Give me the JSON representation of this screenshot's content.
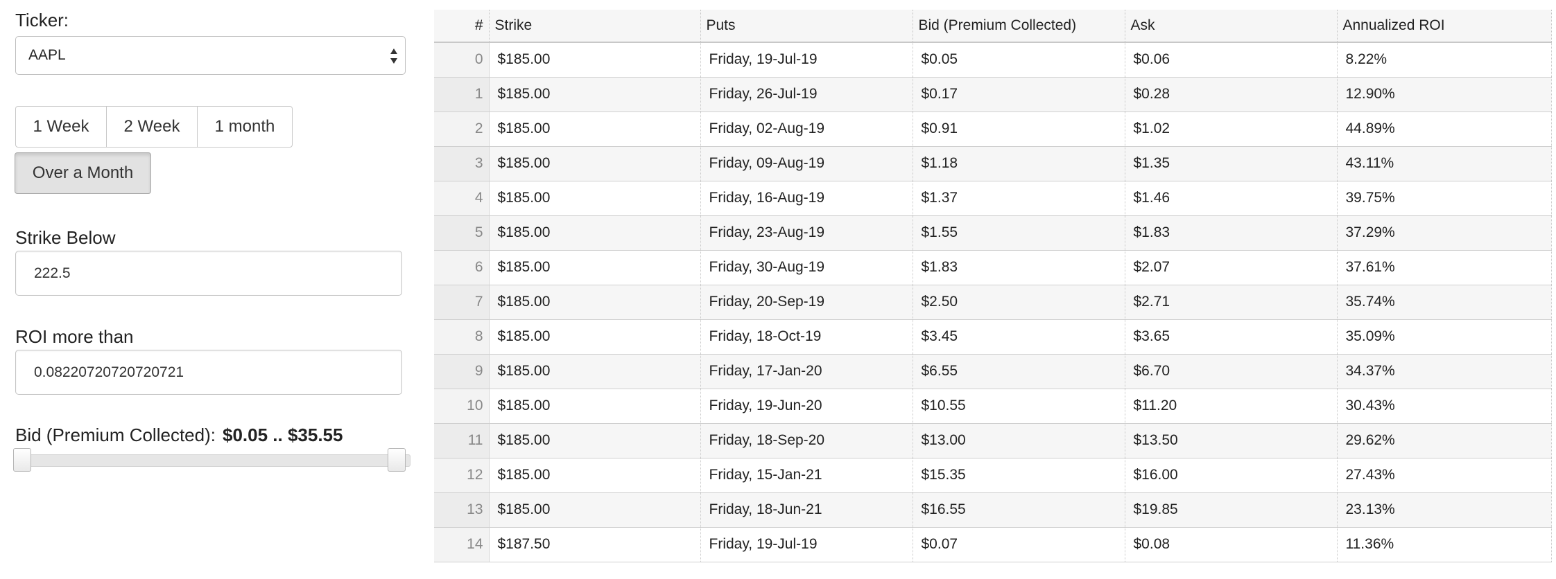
{
  "filters": {
    "ticker": {
      "label": "Ticker:",
      "value": "AAPL"
    },
    "period_buttons": [
      "1 Week",
      "2 Week",
      "1 month"
    ],
    "active_period": "Over a Month",
    "strike_below": {
      "label": "Strike Below",
      "value": "222.5"
    },
    "roi_more_than": {
      "label": "ROI more than",
      "value": "0.08220720720720721"
    },
    "bid_range": {
      "label": "Bid (Premium Collected):",
      "range_text": "$0.05 .. $35.55",
      "min": 0.05,
      "max": 35.55,
      "low": 0.05,
      "high": 35.55
    }
  },
  "table": {
    "headers": [
      "#",
      "Strike",
      "Puts",
      "Bid (Premium Collected)",
      "Ask",
      "Annualized ROI"
    ],
    "rows": [
      [
        "0",
        "$185.00",
        "Friday, 19-Jul-19",
        "$0.05",
        "$0.06",
        "8.22%"
      ],
      [
        "1",
        "$185.00",
        "Friday, 26-Jul-19",
        "$0.17",
        "$0.28",
        "12.90%"
      ],
      [
        "2",
        "$185.00",
        "Friday, 02-Aug-19",
        "$0.91",
        "$1.02",
        "44.89%"
      ],
      [
        "3",
        "$185.00",
        "Friday, 09-Aug-19",
        "$1.18",
        "$1.35",
        "43.11%"
      ],
      [
        "4",
        "$185.00",
        "Friday, 16-Aug-19",
        "$1.37",
        "$1.46",
        "39.75%"
      ],
      [
        "5",
        "$185.00",
        "Friday, 23-Aug-19",
        "$1.55",
        "$1.83",
        "37.29%"
      ],
      [
        "6",
        "$185.00",
        "Friday, 30-Aug-19",
        "$1.83",
        "$2.07",
        "37.61%"
      ],
      [
        "7",
        "$185.00",
        "Friday, 20-Sep-19",
        "$2.50",
        "$2.71",
        "35.74%"
      ],
      [
        "8",
        "$185.00",
        "Friday, 18-Oct-19",
        "$3.45",
        "$3.65",
        "35.09%"
      ],
      [
        "9",
        "$185.00",
        "Friday, 17-Jan-20",
        "$6.55",
        "$6.70",
        "34.37%"
      ],
      [
        "10",
        "$185.00",
        "Friday, 19-Jun-20",
        "$10.55",
        "$11.20",
        "30.43%"
      ],
      [
        "11",
        "$185.00",
        "Friday, 18-Sep-20",
        "$13.00",
        "$13.50",
        "29.62%"
      ],
      [
        "12",
        "$185.00",
        "Friday, 15-Jan-21",
        "$15.35",
        "$16.00",
        "27.43%"
      ],
      [
        "13",
        "$185.00",
        "Friday, 18-Jun-21",
        "$16.55",
        "$19.85",
        "23.13%"
      ],
      [
        "14",
        "$187.50",
        "Friday, 19-Jul-19",
        "$0.07",
        "$0.08",
        "11.36%"
      ]
    ]
  }
}
